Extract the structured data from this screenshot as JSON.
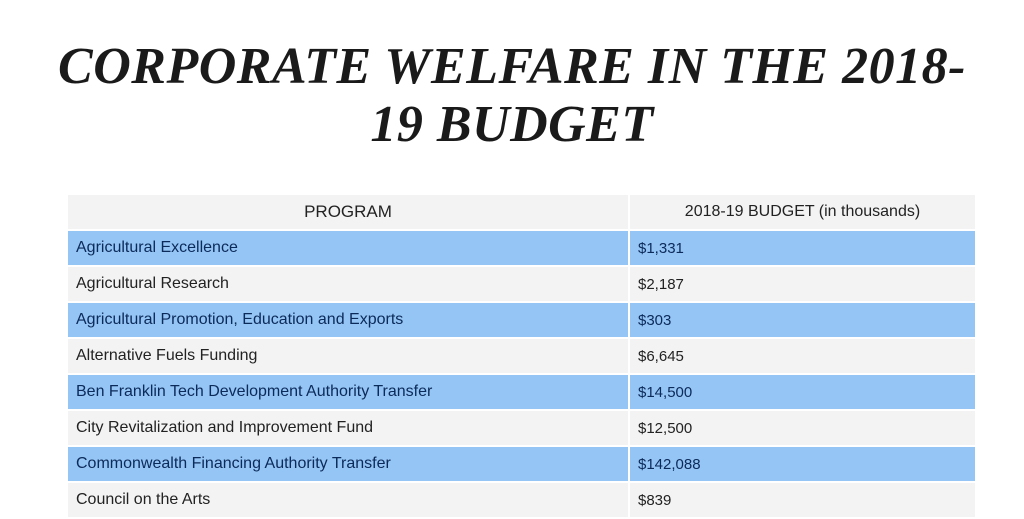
{
  "title": "CORPORATE WELFARE IN THE 2018-19 BUDGET",
  "table": {
    "headers": [
      "PROGRAM",
      "2018-19 BUDGET (in thousands)"
    ],
    "rows": [
      {
        "program": "Agricultural Excellence",
        "budget": "$1,331"
      },
      {
        "program": "Agricultural Research",
        "budget": "$2,187"
      },
      {
        "program": "Agricultural Promotion, Education and Exports",
        "budget": "$303"
      },
      {
        "program": "Alternative Fuels Funding",
        "budget": "$6,645"
      },
      {
        "program": "Ben Franklin Tech Development Authority Transfer",
        "budget": "$14,500"
      },
      {
        "program": "City Revitalization and Improvement Fund",
        "budget": "$12,500"
      },
      {
        "program": "Commonwealth Financing Authority Transfer",
        "budget": "$142,088"
      },
      {
        "program": "Council on the Arts",
        "budget": "$839"
      }
    ]
  },
  "colors": {
    "highlight_row": "#94c5f4",
    "plain_row": "#f3f3f3",
    "highlight_text": "#0c2a5a"
  }
}
